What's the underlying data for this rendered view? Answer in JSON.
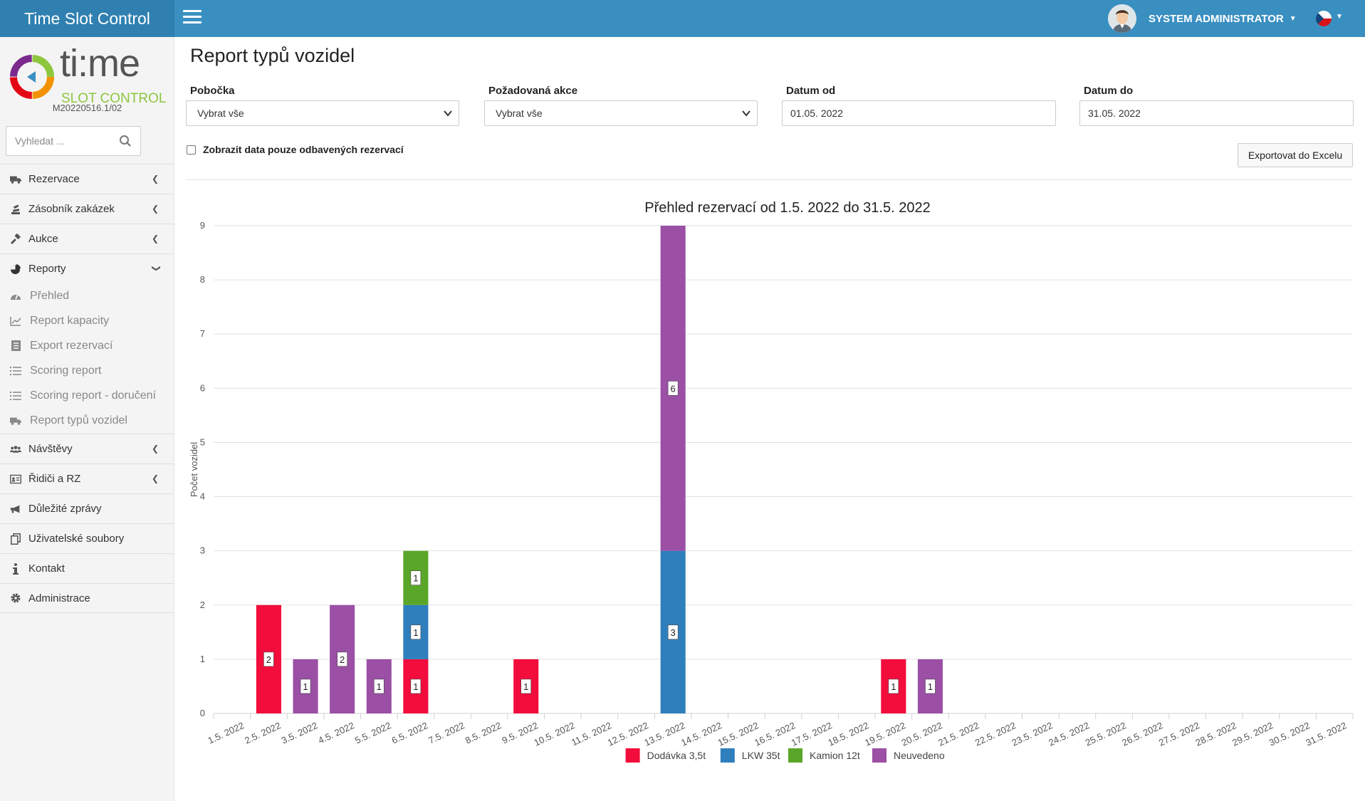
{
  "app": {
    "title": "Time Slot Control",
    "version": "M20220516.1/02",
    "logo_text_main": "ti:me",
    "logo_text_sub": "SLOT CONTROL"
  },
  "header": {
    "user_name": "SYSTEM ADMINISTRATOR",
    "language": "cs"
  },
  "sidebar": {
    "search_placeholder": "Vyhledat ...",
    "items": [
      {
        "label": "Rezervace",
        "icon": "truck-icon",
        "expandable": true
      },
      {
        "label": "Zásobník zakázek",
        "icon": "stack-icon",
        "expandable": true
      },
      {
        "label": "Aukce",
        "icon": "gavel-icon",
        "expandable": true
      },
      {
        "label": "Reporty",
        "icon": "pie-chart-icon",
        "expandable": true,
        "expanded": true
      },
      {
        "label": "Návštěvy",
        "icon": "users-icon",
        "expandable": true
      },
      {
        "label": "Řidiči a RZ",
        "icon": "id-card-icon",
        "expandable": true
      },
      {
        "label": "Důležité zprávy",
        "icon": "megaphone-icon",
        "expandable": false
      },
      {
        "label": "Uživatelské soubory",
        "icon": "files-icon",
        "expandable": false
      },
      {
        "label": "Kontakt",
        "icon": "info-icon",
        "expandable": false
      },
      {
        "label": "Administrace",
        "icon": "gear-icon",
        "expandable": false
      }
    ],
    "report_subitems": [
      {
        "label": "Přehled",
        "icon": "dashboard-icon"
      },
      {
        "label": "Report kapacity",
        "icon": "line-chart-icon"
      },
      {
        "label": "Export rezervací",
        "icon": "document-icon"
      },
      {
        "label": "Scoring report",
        "icon": "list-icon"
      },
      {
        "label": "Scoring report - doručení",
        "icon": "list-icon"
      },
      {
        "label": "Report typů vozidel",
        "icon": "truck-icon"
      }
    ]
  },
  "main": {
    "title": "Report typů vozidel",
    "filters": {
      "branch_label": "Pobočka",
      "branch_value": "Vybrat vše",
      "action_label": "Požadovaná akce",
      "action_value": "Vybrat vše",
      "date_from_label": "Datum od",
      "date_from_value": "01.05. 2022",
      "date_to_label": "Datum do",
      "date_to_value": "31.05. 2022"
    },
    "checkbox_label": "Zobrazit data pouze odbavených rezervací",
    "export_button": "Exportovat do Excelu"
  },
  "chart_data": {
    "type": "bar",
    "stacked": true,
    "title": "Přehled rezervací od 1.5. 2022 do 31.5. 2022",
    "xlabel": "",
    "ylabel": "Počet vozidel",
    "ylim": [
      0,
      9
    ],
    "yticks": [
      0,
      1,
      2,
      3,
      4,
      5,
      6,
      7,
      8,
      9
    ],
    "grid": true,
    "legend_position": "bottom",
    "categories": [
      "1.5. 2022",
      "2.5. 2022",
      "3.5. 2022",
      "4.5. 2022",
      "5.5. 2022",
      "6.5. 2022",
      "7.5. 2022",
      "8.5. 2022",
      "9.5. 2022",
      "10.5. 2022",
      "11.5. 2022",
      "12.5. 2022",
      "13.5. 2022",
      "14.5. 2022",
      "15.5. 2022",
      "16.5. 2022",
      "17.5. 2022",
      "18.5. 2022",
      "19.5. 2022",
      "20.5. 2022",
      "21.5. 2022",
      "22.5. 2022",
      "23.5. 2022",
      "24.5. 2022",
      "25.5. 2022",
      "26.5. 2022",
      "27.5. 2022",
      "28.5. 2022",
      "29.5. 2022",
      "30.5. 2022",
      "31.5. 2022"
    ],
    "series": [
      {
        "name": "Dodávka 3,5t",
        "color": "#f20d3c",
        "values": [
          0,
          2,
          0,
          0,
          0,
          1,
          0,
          0,
          1,
          0,
          0,
          0,
          0,
          0,
          0,
          0,
          0,
          0,
          1,
          0,
          0,
          0,
          0,
          0,
          0,
          0,
          0,
          0,
          0,
          0,
          0
        ]
      },
      {
        "name": "LKW 35t",
        "color": "#2f7fbd",
        "values": [
          0,
          0,
          0,
          0,
          0,
          1,
          0,
          0,
          0,
          0,
          0,
          0,
          3,
          0,
          0,
          0,
          0,
          0,
          0,
          0,
          0,
          0,
          0,
          0,
          0,
          0,
          0,
          0,
          0,
          0,
          0
        ]
      },
      {
        "name": "Kamion 12t",
        "color": "#5aa629",
        "values": [
          0,
          0,
          0,
          0,
          0,
          1,
          0,
          0,
          0,
          0,
          0,
          0,
          0,
          0,
          0,
          0,
          0,
          0,
          0,
          0,
          0,
          0,
          0,
          0,
          0,
          0,
          0,
          0,
          0,
          0,
          0
        ]
      },
      {
        "name": "Neuvedeno",
        "color": "#9b4fa5",
        "values": [
          0,
          0,
          1,
          2,
          1,
          0,
          0,
          0,
          0,
          0,
          0,
          0,
          6,
          0,
          0,
          0,
          0,
          0,
          0,
          1,
          0,
          0,
          0,
          0,
          0,
          0,
          0,
          0,
          0,
          0,
          0
        ]
      }
    ]
  }
}
